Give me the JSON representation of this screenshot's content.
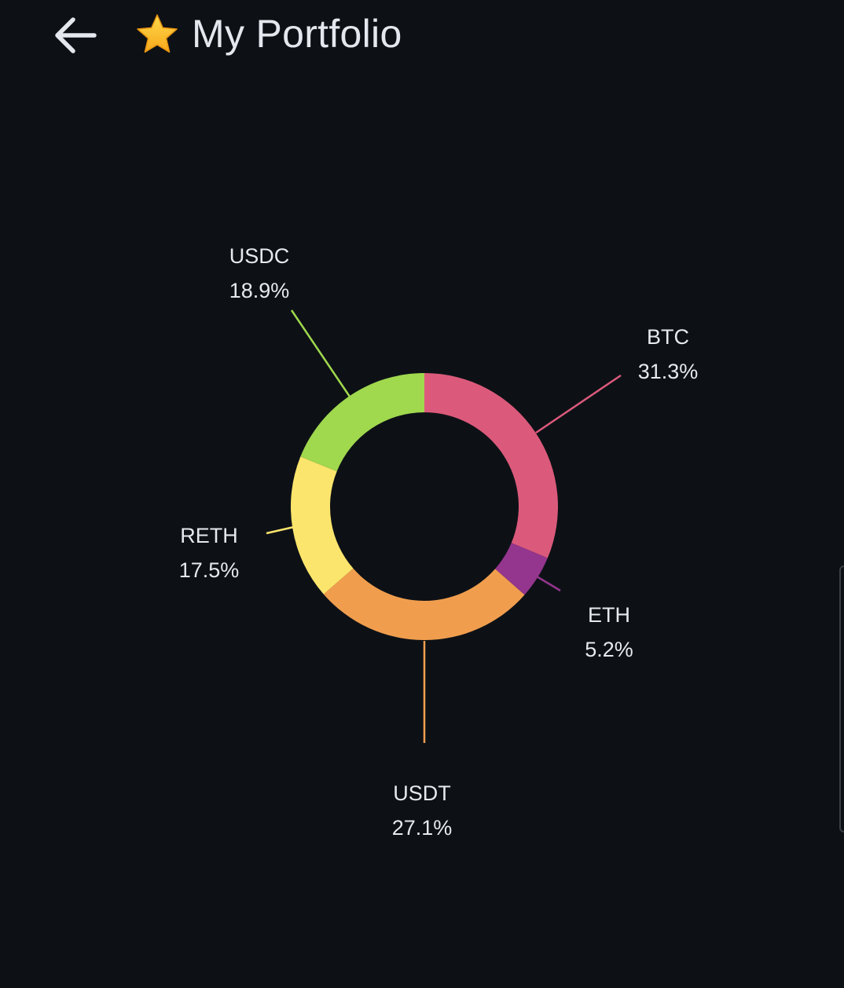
{
  "header": {
    "back_icon": "arrow-left-icon",
    "star_icon": "star-icon",
    "title": "My Portfolio"
  },
  "colors": {
    "background": "#0d1116",
    "BTC": "#db5a7b",
    "ETH": "#94358e",
    "USDT": "#f09e4e",
    "RETH": "#fce56c",
    "USDC": "#a0d84e"
  },
  "chart_data": {
    "type": "pie",
    "variant": "donut",
    "start_angle": "12 o'clock",
    "direction": "clockwise",
    "slices": [
      {
        "name": "BTC",
        "value": 31.3,
        "label": "31.3%",
        "color": "#db5a7b"
      },
      {
        "name": "ETH",
        "value": 5.2,
        "label": "5.2%",
        "color": "#94358e"
      },
      {
        "name": "USDT",
        "value": 27.1,
        "label": "27.1%",
        "color": "#f09e4e"
      },
      {
        "name": "RETH",
        "value": 17.5,
        "label": "17.5%",
        "color": "#fce56c"
      },
      {
        "name": "USDC",
        "value": 18.9,
        "label": "18.9%",
        "color": "#a0d84e"
      }
    ]
  }
}
